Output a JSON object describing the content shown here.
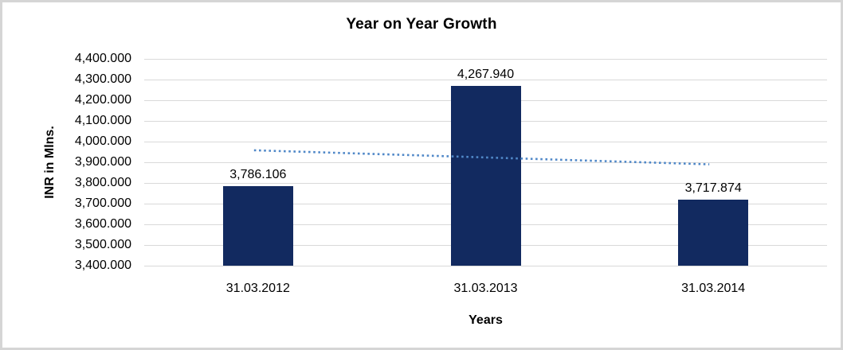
{
  "frame": {
    "background": "#ffffff",
    "border_color": "#d5d5d5"
  },
  "chart_data": {
    "type": "bar",
    "title": "Year on Year Growth",
    "xlabel": "Years",
    "ylabel": "INR in Mlns.",
    "categories": [
      "31.03.2012",
      "31.03.2013",
      "31.03.2014"
    ],
    "values": [
      3786.106,
      4267.94,
      3717.874
    ],
    "data_labels": [
      "3,786.106",
      "4,267.940",
      "3,717.874"
    ],
    "ylim": [
      3400,
      4400
    ],
    "ytick_step": 100,
    "ytick_labels": [
      "4,400.000",
      "4,300.000",
      "4,200.000",
      "4,100.000",
      "4,000.000",
      "3,900.000",
      "3,800.000",
      "3,700.000",
      "3,600.000",
      "3,500.000",
      "3,400.000"
    ],
    "grid": true,
    "legend": "none",
    "bar_color": "#122a60",
    "gridline_color": "#d9d9d9",
    "trendline": {
      "style": "dotted",
      "color": "#5088c8",
      "start_value": 3958,
      "end_value": 3890
    }
  }
}
